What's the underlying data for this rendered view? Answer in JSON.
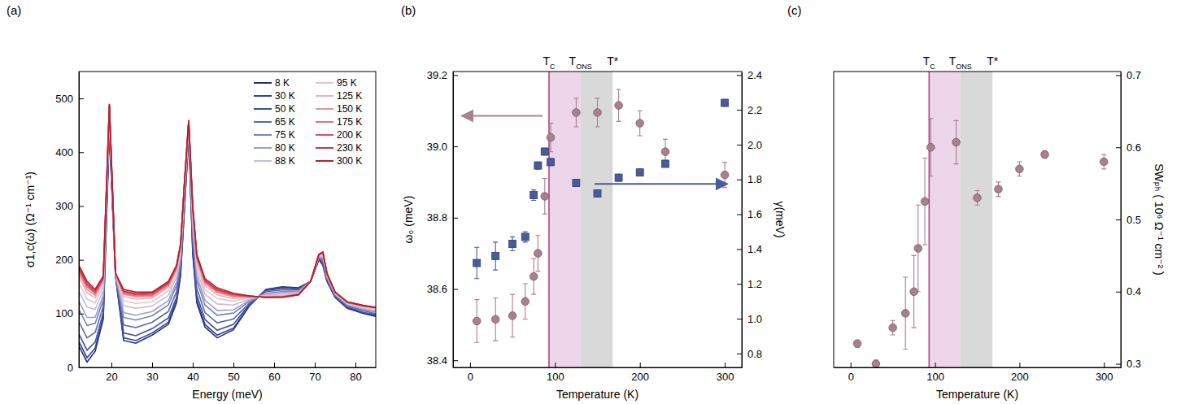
{
  "chart_data": [
    {
      "type": "line",
      "title": "(a)",
      "x_label": "Energy (meV)",
      "y_label": "σ1,c(ω) (Ω⁻¹ cm⁻¹)",
      "x": [
        12,
        14,
        16,
        18,
        19.5,
        21,
        23,
        26,
        30,
        34,
        36,
        37,
        38,
        39,
        40,
        41,
        43,
        46,
        50,
        54,
        58,
        62,
        66,
        69,
        71,
        72,
        73,
        75,
        78,
        82,
        85
      ],
      "xlim": [
        12,
        85
      ],
      "xticks": [
        20,
        30,
        40,
        50,
        60,
        70,
        80
      ],
      "ylim": [
        0,
        550
      ],
      "yticks": [
        0,
        100,
        200,
        300,
        400,
        500
      ],
      "legend": "upper right",
      "series": [
        {
          "name": "8 K",
          "color": "#262f7a",
          "values": [
            40,
            10,
            30,
            90,
            440,
            170,
            50,
            45,
            60,
            80,
            120,
            170,
            300,
            430,
            210,
            120,
            75,
            55,
            70,
            115,
            145,
            150,
            148,
            160,
            200,
            190,
            160,
            130,
            110,
            100,
            95
          ]
        },
        {
          "name": "30 K",
          "color": "#33408c",
          "values": [
            48,
            18,
            36,
            94,
            442,
            170,
            55,
            50,
            64,
            84,
            124,
            173,
            303,
            432,
            215,
            125,
            80,
            60,
            73,
            116,
            144,
            149,
            147,
            160,
            201,
            191,
            161,
            131,
            111,
            101,
            96
          ]
        },
        {
          "name": "50 K",
          "color": "#3f4f9c",
          "values": [
            62,
            32,
            47,
            102,
            448,
            171,
            64,
            59,
            72,
            92,
            130,
            179,
            308,
            435,
            224,
            134,
            89,
            69,
            80,
            118,
            143,
            147,
            146,
            160,
            202,
            194,
            162,
            132,
            112,
            102,
            98
          ]
        },
        {
          "name": "65 K",
          "color": "#5b67ab",
          "values": [
            85,
            55,
            65,
            114,
            455,
            172,
            79,
            74,
            84,
            104,
            141,
            188,
            315,
            439,
            237,
            147,
            102,
            83,
            90,
            120,
            141,
            144,
            144,
            160,
            203,
            198,
            165,
            133,
            114,
            105,
            100
          ]
        },
        {
          "name": "75 K",
          "color": "#7a82bc",
          "values": [
            108,
            78,
            82,
            126,
            463,
            172,
            93,
            88,
            96,
            116,
            152,
            197,
            323,
            444,
            251,
            161,
            116,
            97,
            101,
            123,
            138,
            141,
            142,
            160,
            205,
            201,
            167,
            135,
            115,
            107,
            103
          ]
        },
        {
          "name": "80 K",
          "color": "#9da0cc",
          "values": [
            123,
            93,
            93,
            134,
            468,
            173,
            102,
            97,
            104,
            124,
            159,
            203,
            328,
            447,
            260,
            170,
            125,
            106,
            107,
            125,
            137,
            139,
            141,
            160,
            206,
            204,
            168,
            136,
            117,
            108,
            104
          ]
        },
        {
          "name": "88 K",
          "color": "#c4bcd6",
          "values": [
            142,
            112,
            108,
            144,
            474,
            173,
            115,
            110,
            114,
            134,
            168,
            211,
            334,
            450,
            271,
            181,
            136,
            118,
            116,
            127,
            135,
            136,
            139,
            160,
            207,
            207,
            170,
            137,
            118,
            110,
            107
          ]
        },
        {
          "name": "95 K",
          "color": "#e6c6d0",
          "values": [
            157,
            127,
            120,
            152,
            479,
            174,
            124,
            119,
            122,
            142,
            175,
            217,
            339,
            453,
            280,
            190,
            145,
            128,
            123,
            129,
            133,
            134,
            138,
            160,
            208,
            210,
            172,
            138,
            119,
            112,
            108
          ]
        },
        {
          "name": "125 K",
          "color": "#eeb0ba",
          "values": [
            169,
            139,
            129,
            159,
            483,
            174,
            132,
            127,
            129,
            149,
            180,
            222,
            343,
            456,
            287,
            197,
            152,
            135,
            128,
            130,
            132,
            133,
            137,
            160,
            209,
            212,
            173,
            139,
            120,
            113,
            110
          ]
        },
        {
          "name": "150 K",
          "color": "#e8929e",
          "values": [
            175,
            145,
            134,
            162,
            485,
            175,
            136,
            131,
            132,
            152,
            183,
            224,
            345,
            457,
            291,
            201,
            156,
            139,
            131,
            131,
            132,
            132,
            136,
            160,
            209,
            213,
            174,
            139,
            121,
            114,
            110
          ]
        },
        {
          "name": "175 K",
          "color": "#e07282",
          "values": [
            180,
            150,
            137,
            164,
            487,
            175,
            138,
            133,
            134,
            154,
            185,
            226,
            347,
            458,
            294,
            204,
            159,
            141,
            133,
            132,
            131,
            131,
            136,
            160,
            209,
            213,
            174,
            139,
            121,
            114,
            111
          ]
        },
        {
          "name": "200 K",
          "color": "#d95064",
          "values": [
            183,
            153,
            139,
            166,
            488,
            175,
            140,
            135,
            136,
            156,
            187,
            227,
            348,
            459,
            296,
            206,
            161,
            143,
            135,
            132,
            131,
            131,
            136,
            160,
            210,
            214,
            174,
            140,
            121,
            114,
            111
          ]
        },
        {
          "name": "230 K",
          "color": "#cf3346",
          "values": [
            186,
            156,
            142,
            168,
            489,
            175,
            142,
            137,
            138,
            158,
            188,
            228,
            349,
            459,
            297,
            207,
            162,
            145,
            136,
            133,
            130,
            131,
            135,
            160,
            210,
            214,
            175,
            140,
            122,
            115,
            111
          ]
        },
        {
          "name": "300 K",
          "color": "#b3202e",
          "values": [
            190,
            160,
            145,
            170,
            490,
            175,
            145,
            140,
            140,
            160,
            190,
            230,
            350,
            460,
            300,
            210,
            165,
            148,
            138,
            133,
            130,
            130,
            135,
            160,
            210,
            215,
            175,
            140,
            122,
            115,
            112
          ]
        }
      ]
    },
    {
      "type": "scatter",
      "title": "(b)",
      "x_label": "Temperature (K)",
      "y_label": "ω₀ (meV)",
      "y2_label": "γ(meV)",
      "x": [
        8,
        30,
        50,
        65,
        75,
        80,
        88,
        95,
        125,
        150,
        175,
        200,
        230,
        300
      ],
      "xlim": [
        -20,
        320
      ],
      "xticks": [
        0,
        100,
        200,
        300
      ],
      "ylim": [
        38.38,
        39.21
      ],
      "yticks": [
        38.4,
        38.6,
        38.8,
        {
          "value": 39,
          "label": "39.0"
        },
        39.2
      ],
      "y2lim": [
        0.72,
        2.42
      ],
      "y2ticks": [
        0.8,
        {
          "value": 1,
          "label": "1.0"
        },
        1.2,
        1.4,
        1.6,
        1.8,
        {
          "value": 2,
          "label": "2.0"
        },
        2.2,
        2.4
      ],
      "annotations": [
        {
          "text": "T",
          "subscript": "C",
          "x": 93
        },
        {
          "text": "T",
          "subscript": "ONS",
          "x": 130
        },
        {
          "text": "T*",
          "x": 168
        }
      ],
      "bands": [
        {
          "from": 93,
          "to": 130,
          "color": "#edd5ea"
        },
        {
          "from": 130,
          "to": 168,
          "color": "#d9d9d9"
        }
      ],
      "series": [
        {
          "color": "#a9808f",
          "marker": "circle",
          "values": [
            38.51,
            38.515,
            38.525,
            38.565,
            38.635,
            38.7,
            38.86,
            39.025,
            39.095,
            39.095,
            39.115,
            39.065,
            38.985,
            38.92
          ],
          "errors": [
            0.06,
            0.06,
            0.06,
            0.05,
            0.05,
            0.05,
            0.05,
            0.04,
            0.04,
            0.04,
            0.045,
            0.035,
            0.035,
            0.035
          ]
        },
        {
          "color": "#4a5b9c",
          "marker": "square",
          "axis": "y2",
          "values": [
            1.32,
            1.36,
            1.43,
            1.47,
            1.71,
            1.88,
            1.96,
            1.9,
            1.78,
            1.72,
            1.81,
            1.84,
            1.89,
            2.24
          ],
          "errors": [
            0.09,
            0.08,
            0.04,
            0.03,
            0.03,
            0.02,
            0.02,
            0.02,
            0.02,
            0.02,
            0.02,
            0.02,
            0.02,
            0.02
          ]
        }
      ]
    },
    {
      "type": "scatter",
      "title": "(c)",
      "x_label": "Temperature (K)",
      "y2_label": "SWₚₕ ( 10⁶ Ω⁻¹ cm⁻² )",
      "x": [
        8,
        30,
        50,
        65,
        75,
        80,
        88,
        95,
        125,
        150,
        175,
        200,
        230,
        300
      ],
      "xlim": [
        -20,
        320
      ],
      "xticks": [
        0,
        100,
        200,
        300
      ],
      "y2lim": [
        0.295,
        0.705
      ],
      "y2ticks": [
        0.3,
        0.4,
        0.5,
        0.6,
        0.7
      ],
      "annotations": [
        {
          "text": "T",
          "subscript": "C",
          "x": 93
        },
        {
          "text": "T",
          "subscript": "ONS",
          "x": 130
        },
        {
          "text": "T*",
          "x": 168
        }
      ],
      "bands": [
        {
          "from": 93,
          "to": 130,
          "color": "#edd5ea"
        },
        {
          "from": 130,
          "to": 168,
          "color": "#d9d9d9"
        }
      ],
      "series": [
        {
          "color": "#a9808f",
          "marker": "circle",
          "axis": "y2",
          "values": [
            0.328,
            0.3,
            0.35,
            0.37,
            0.4,
            0.46,
            0.525,
            0.6,
            0.607,
            0.53,
            0.542,
            0.57,
            0.59,
            0.58
          ],
          "errors": [
            0.005,
            0.005,
            0.01,
            0.05,
            0.05,
            0.06,
            0.06,
            0.04,
            0.03,
            0.01,
            0.01,
            0.01,
            0.005,
            0.01
          ]
        }
      ]
    }
  ]
}
